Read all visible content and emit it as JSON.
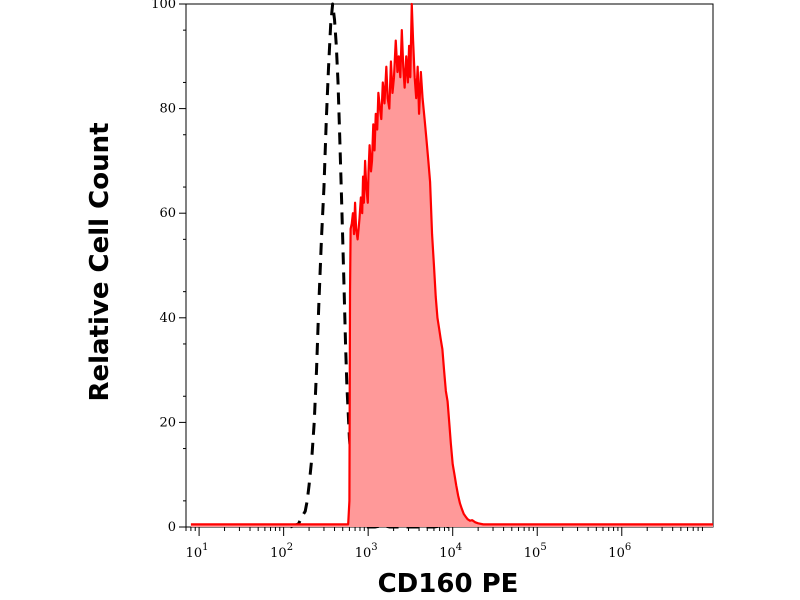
{
  "chart_data": {
    "type": "area",
    "title": "",
    "xlabel": "CD160 PE",
    "ylabel": "Relative Cell Count",
    "x_scale": "log",
    "xlim": [
      7,
      12000000
    ],
    "ylim": [
      0,
      100
    ],
    "grid": false,
    "x_ticks": [
      {
        "base": "10",
        "exp": "1",
        "value": 10
      },
      {
        "base": "10",
        "exp": "2",
        "value": 100
      },
      {
        "base": "10",
        "exp": "3",
        "value": 1000
      },
      {
        "base": "10",
        "exp": "4",
        "value": 10000
      },
      {
        "base": "10",
        "exp": "5",
        "value": 100000
      },
      {
        "base": "10",
        "exp": "6",
        "value": 1000000
      }
    ],
    "y_ticks": [
      "0",
      "20",
      "40",
      "60",
      "80",
      "100"
    ],
    "y_tick_values": [
      0,
      20,
      40,
      60,
      80,
      100
    ],
    "series": [
      {
        "style": "dashed",
        "color": "#000000",
        "points": [
          [
            120,
            0
          ],
          [
            150,
            0.6
          ],
          [
            165,
            2
          ],
          [
            180,
            3
          ],
          [
            190,
            5
          ],
          [
            200,
            8
          ],
          [
            215,
            13
          ],
          [
            230,
            20
          ],
          [
            245,
            30
          ],
          [
            260,
            42
          ],
          [
            280,
            55
          ],
          [
            300,
            65
          ],
          [
            320,
            78
          ],
          [
            340,
            88
          ],
          [
            360,
            96
          ],
          [
            380,
            100
          ],
          [
            400,
            97
          ],
          [
            420,
            92
          ],
          [
            440,
            85
          ],
          [
            460,
            75
          ],
          [
            480,
            65
          ],
          [
            500,
            55
          ],
          [
            520,
            45
          ],
          [
            540,
            35
          ],
          [
            560,
            27
          ],
          [
            580,
            22
          ],
          [
            600,
            17
          ],
          [
            620,
            14
          ],
          [
            640,
            11
          ],
          [
            680,
            7
          ],
          [
            720,
            4
          ],
          [
            760,
            2
          ],
          [
            800,
            1
          ],
          [
            850,
            0.2
          ],
          [
            900,
            0
          ],
          [
            1200,
            0
          ],
          [
            1500,
            0.3
          ],
          [
            1800,
            0
          ],
          [
            3000,
            0
          ],
          [
            6000,
            0
          ],
          [
            8000,
            0.3
          ],
          [
            9000,
            0
          ]
        ]
      },
      {
        "style": "filled",
        "color": "#ff0000",
        "fill": "#ff9999",
        "points": [
          [
            8,
            0.5
          ],
          [
            100,
            0.5
          ],
          [
            580,
            0.5
          ],
          [
            600,
            5
          ],
          [
            610,
            45
          ],
          [
            620,
            57
          ],
          [
            640,
            58
          ],
          [
            660,
            60
          ],
          [
            680,
            56
          ],
          [
            700,
            62
          ],
          [
            720,
            57
          ],
          [
            750,
            55
          ],
          [
            790,
            59
          ],
          [
            820,
            63
          ],
          [
            850,
            60
          ],
          [
            870,
            67
          ],
          [
            890,
            62
          ],
          [
            920,
            70
          ],
          [
            950,
            65
          ],
          [
            990,
            62
          ],
          [
            1010,
            68
          ],
          [
            1040,
            73
          ],
          [
            1080,
            68
          ],
          [
            1110,
            70
          ],
          [
            1150,
            77
          ],
          [
            1190,
            72
          ],
          [
            1230,
            79
          ],
          [
            1280,
            76
          ],
          [
            1320,
            83
          ],
          [
            1380,
            80
          ],
          [
            1430,
            78
          ],
          [
            1490,
            85
          ],
          [
            1560,
            81
          ],
          [
            1640,
            88
          ],
          [
            1700,
            82
          ],
          [
            1780,
            80
          ],
          [
            1860,
            89
          ],
          [
            1940,
            83
          ],
          [
            2020,
            86
          ],
          [
            2120,
            93
          ],
          [
            2220,
            87
          ],
          [
            2300,
            90
          ],
          [
            2400,
            86
          ],
          [
            2500,
            95
          ],
          [
            2600,
            88
          ],
          [
            2700,
            84
          ],
          [
            2820,
            90
          ],
          [
            2950,
            85
          ],
          [
            3050,
            92
          ],
          [
            3150,
            86
          ],
          [
            3280,
            100
          ],
          [
            3400,
            93
          ],
          [
            3550,
            86
          ],
          [
            3700,
            82
          ],
          [
            3850,
            88
          ],
          [
            4000,
            79
          ],
          [
            4200,
            87
          ],
          [
            4400,
            82
          ],
          [
            4650,
            78
          ],
          [
            4900,
            74
          ],
          [
            5150,
            70
          ],
          [
            5400,
            66
          ],
          [
            5700,
            56
          ],
          [
            6000,
            50
          ],
          [
            6300,
            44
          ],
          [
            6600,
            40
          ],
          [
            6900,
            38
          ],
          [
            7200,
            36
          ],
          [
            7550,
            34
          ],
          [
            7900,
            30
          ],
          [
            8300,
            26
          ],
          [
            8700,
            24
          ],
          [
            9100,
            20
          ],
          [
            9500,
            16
          ],
          [
            10000,
            12
          ],
          [
            10500,
            10
          ],
          [
            11000,
            8
          ],
          [
            11600,
            6
          ],
          [
            12200,
            4.5
          ],
          [
            12800,
            3.5
          ],
          [
            13500,
            2.5
          ],
          [
            14200,
            2
          ],
          [
            15000,
            1.5
          ],
          [
            16000,
            1.2
          ],
          [
            17000,
            1.3
          ],
          [
            18500,
            0.9
          ],
          [
            20000,
            0.7
          ],
          [
            23000,
            0.5
          ],
          [
            100000,
            0.5
          ],
          [
            1000000,
            0.5
          ],
          [
            12000000,
            0.5
          ]
        ]
      }
    ]
  }
}
